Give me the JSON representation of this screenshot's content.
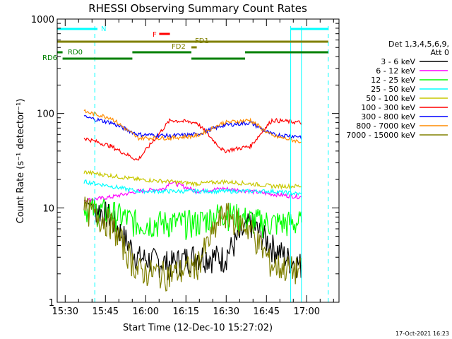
{
  "chart_data": {
    "type": "line",
    "title": "RHESSI Observing Summary Count Rates",
    "xlabel": "Start Time (12-Dec-10 15:27:02)",
    "ylabel": "Count Rate (s⁻¹ detector⁻¹)",
    "ylog": true,
    "ylim": [
      1,
      1000
    ],
    "xlim_minutes": [
      0,
      105
    ],
    "x_ticks": [
      "15:30",
      "15:45",
      "16:00",
      "16:15",
      "16:30",
      "16:45",
      "17:00"
    ],
    "y_ticks": [
      "1",
      "10",
      "100",
      "1000"
    ],
    "legend_header": [
      "Det 1,3,4,5,6,9,",
      "Att 0"
    ],
    "legend_position": "right",
    "footer_date": "17-Oct-2021 16:23",
    "series": [
      {
        "name": "3 - 6 keV",
        "color": "#000000",
        "x_min": [
          10,
          20,
          30,
          42,
          52,
          62,
          72,
          80,
          87,
          91
        ],
        "values": [
          12,
          8,
          3,
          2.6,
          3.2,
          3,
          7,
          4,
          2.8,
          2.5
        ]
      },
      {
        "name": "6 - 12 keV",
        "color": "#ff00ff",
        "x_min": [
          10,
          20,
          30,
          40,
          42,
          52,
          62,
          72,
          80,
          91
        ],
        "values": [
          12,
          13,
          15,
          16,
          19,
          15,
          16,
          15,
          14,
          13
        ]
      },
      {
        "name": "12 - 25 keV",
        "color": "#00ff00",
        "x_min": [
          10,
          20,
          30,
          42,
          52,
          62,
          72,
          80,
          91
        ],
        "values": [
          10,
          9,
          7,
          7,
          7,
          9,
          7.5,
          7,
          7
        ]
      },
      {
        "name": "25 - 50 keV",
        "color": "#00ffff",
        "x_min": [
          10,
          20,
          30,
          42,
          52,
          62,
          72,
          80,
          91
        ],
        "values": [
          19,
          17,
          15,
          15,
          15,
          15,
          15,
          15,
          14
        ]
      },
      {
        "name": "50 - 100 keV",
        "color": "#c8c800",
        "x_min": [
          10,
          20,
          30,
          42,
          52,
          62,
          72,
          80,
          91
        ],
        "values": [
          24,
          22,
          20,
          19,
          18,
          19,
          18,
          17,
          17
        ]
      },
      {
        "name": "100 - 300 keV",
        "color": "#ff0000",
        "x_min": [
          10,
          20,
          30,
          42,
          52,
          62,
          72,
          80,
          91
        ],
        "values": [
          55,
          45,
          32,
          85,
          80,
          40,
          45,
          85,
          80
        ]
      },
      {
        "name": "300 - 800 keV",
        "color": "#0000ff",
        "x_min": [
          10,
          20,
          30,
          42,
          52,
          62,
          72,
          80,
          91
        ],
        "values": [
          92,
          80,
          60,
          58,
          60,
          75,
          80,
          60,
          57
        ]
      },
      {
        "name": "800 - 7000 keV",
        "color": "#ff8c00",
        "x_min": [
          10,
          20,
          30,
          42,
          52,
          62,
          72,
          80,
          91
        ],
        "values": [
          105,
          90,
          55,
          55,
          58,
          80,
          85,
          58,
          50
        ]
      },
      {
        "name": "7000 - 15000 keV",
        "color": "#808000",
        "x_min": [
          10,
          20,
          30,
          42,
          52,
          62,
          72,
          80,
          91
        ],
        "values": [
          10,
          7,
          2.2,
          2,
          2.5,
          9,
          6,
          2.5,
          2.2
        ]
      }
    ],
    "state_bars": [
      {
        "label": "N",
        "color": "#00ffff",
        "segments_min": [
          [
            0,
            15
          ],
          [
            87,
            101
          ]
        ]
      },
      {
        "label": "F",
        "color": "#ff0000",
        "segments_min": [
          [
            38,
            42
          ]
        ]
      },
      {
        "label": "FD1",
        "color": "#808000",
        "segments_min": [
          [
            0,
            101
          ]
        ]
      },
      {
        "label": "FD2",
        "color": "#808000",
        "segments_min": [
          [
            50,
            52
          ]
        ]
      },
      {
        "label": "RD0",
        "color": "#008000",
        "segments_min": [
          [
            0,
            2
          ],
          [
            28,
            50
          ],
          [
            70,
            101
          ]
        ]
      },
      {
        "label": "RD6",
        "color": "#008000",
        "segments_min": [
          [
            2,
            28
          ],
          [
            50,
            70
          ]
        ]
      }
    ],
    "vlines_min": [
      {
        "x": 14,
        "style": "dashed"
      },
      {
        "x": 87,
        "style": "solid"
      },
      {
        "x": 91,
        "style": "solid"
      },
      {
        "x": 101,
        "style": "dashed"
      }
    ]
  }
}
